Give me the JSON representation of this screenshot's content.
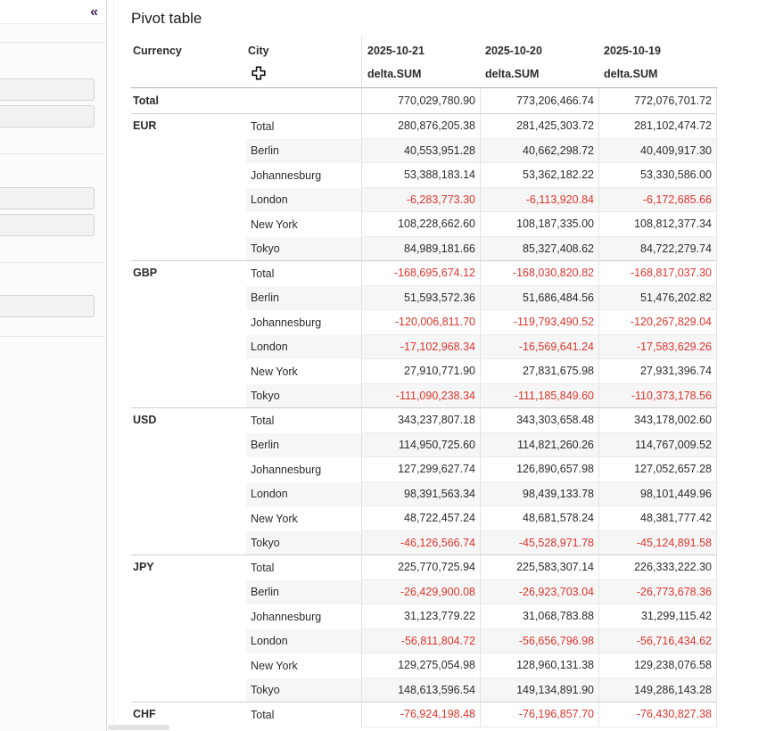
{
  "sidebar": {
    "collapse_icon": "«"
  },
  "main": {
    "title": "Pivot table",
    "table": {
      "row_headers": [
        "Currency",
        "City"
      ],
      "value_columns": [
        {
          "date": "2025-10-21",
          "measure": "delta.SUM"
        },
        {
          "date": "2025-10-20",
          "measure": "delta.SUM"
        },
        {
          "date": "2025-10-19",
          "measure": "delta.SUM"
        }
      ],
      "grand_total": {
        "label": "Total",
        "values": [
          "770,029,780.90",
          "773,206,466.74",
          "772,076,701.72"
        ]
      },
      "groups": [
        {
          "currency": "EUR",
          "rows": [
            {
              "city": "Total",
              "values": [
                "280,876,205.38",
                "281,425,303.72",
                "281,102,474.72"
              ]
            },
            {
              "city": "Berlin",
              "values": [
                "40,553,951.28",
                "40,662,298.72",
                "40,409,917.30"
              ]
            },
            {
              "city": "Johannesburg",
              "values": [
                "53,388,183.14",
                "53,362,182.22",
                "53,330,586.00"
              ]
            },
            {
              "city": "London",
              "values": [
                "-6,283,773.30",
                "-6,113,920.84",
                "-6,172,685.66"
              ]
            },
            {
              "city": "New York",
              "values": [
                "108,228,662.60",
                "108,187,335.00",
                "108,812,377.34"
              ]
            },
            {
              "city": "Tokyo",
              "values": [
                "84,989,181.66",
                "85,327,408.62",
                "84,722,279.74"
              ]
            }
          ]
        },
        {
          "currency": "GBP",
          "rows": [
            {
              "city": "Total",
              "values": [
                "-168,695,674.12",
                "-168,030,820.82",
                "-168,817,037.30"
              ]
            },
            {
              "city": "Berlin",
              "values": [
                "51,593,572.36",
                "51,686,484.56",
                "51,476,202.82"
              ]
            },
            {
              "city": "Johannesburg",
              "values": [
                "-120,006,811.70",
                "-119,793,490.52",
                "-120,267,829.04"
              ]
            },
            {
              "city": "London",
              "values": [
                "-17,102,968.34",
                "-16,569,641.24",
                "-17,583,629.26"
              ]
            },
            {
              "city": "New York",
              "values": [
                "27,910,771.90",
                "27,831,675.98",
                "27,931,396.74"
              ]
            },
            {
              "city": "Tokyo",
              "values": [
                "-111,090,238.34",
                "-111,185,849.60",
                "-110,373,178.56"
              ]
            }
          ]
        },
        {
          "currency": "USD",
          "rows": [
            {
              "city": "Total",
              "values": [
                "343,237,807.18",
                "343,303,658.48",
                "343,178,002.60"
              ]
            },
            {
              "city": "Berlin",
              "values": [
                "114,950,725.60",
                "114,821,260.26",
                "114,767,009.52"
              ]
            },
            {
              "city": "Johannesburg",
              "values": [
                "127,299,627.74",
                "126,890,657.98",
                "127,052,657.28"
              ]
            },
            {
              "city": "London",
              "values": [
                "98,391,563.34",
                "98,439,133.78",
                "98,101,449.96"
              ]
            },
            {
              "city": "New York",
              "values": [
                "48,722,457.24",
                "48,681,578.24",
                "48,381,777.42"
              ]
            },
            {
              "city": "Tokyo",
              "values": [
                "-46,126,566.74",
                "-45,528,971.78",
                "-45,124,891.58"
              ]
            }
          ]
        },
        {
          "currency": "JPY",
          "rows": [
            {
              "city": "Total",
              "values": [
                "225,770,725.94",
                "225,583,307.14",
                "226,333,222.30"
              ]
            },
            {
              "city": "Berlin",
              "values": [
                "-26,429,900.08",
                "-26,923,703.04",
                "-26,773,678.36"
              ]
            },
            {
              "city": "Johannesburg",
              "values": [
                "31,123,779.22",
                "31,068,783.88",
                "31,299,115.42"
              ]
            },
            {
              "city": "London",
              "values": [
                "-56,811,804.72",
                "-56,656,796.98",
                "-56,716,434.62"
              ]
            },
            {
              "city": "New York",
              "values": [
                "129,275,054.98",
                "128,960,131.38",
                "129,238,076.58"
              ]
            },
            {
              "city": "Tokyo",
              "values": [
                "148,613,596.54",
                "149,134,891.90",
                "149,286,143.28"
              ]
            }
          ]
        },
        {
          "currency": "CHF",
          "rows": [
            {
              "city": "Total",
              "values": [
                "-76,924,198.48",
                "-76,196,857.70",
                "-76,430,827.38"
              ]
            }
          ]
        }
      ]
    }
  },
  "colors": {
    "negative_value": "#dd342c",
    "sidebar_icon": "#42265d",
    "row_stripe": "#f6f6f6"
  }
}
